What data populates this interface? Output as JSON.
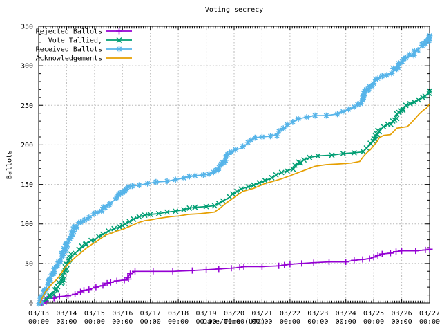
{
  "title": "Voting secrecy",
  "axes": {
    "x_label": "Date/Time (UTC)",
    "y_label": "Ballots",
    "x_ticks": [
      {
        "date": "03/13",
        "time": "00:00"
      },
      {
        "date": "03/14",
        "time": "00:00"
      },
      {
        "date": "03/15",
        "time": "00:00"
      },
      {
        "date": "03/16",
        "time": "00:00"
      },
      {
        "date": "03/17",
        "time": "00:00"
      },
      {
        "date": "03/18",
        "time": "00:00"
      },
      {
        "date": "03/19",
        "time": "00:00"
      },
      {
        "date": "03/20",
        "time": "00:00"
      },
      {
        "date": "03/21",
        "time": "00:00"
      },
      {
        "date": "03/22",
        "time": "00:00"
      },
      {
        "date": "03/23",
        "time": "00:00"
      },
      {
        "date": "03/24",
        "time": "00:00"
      },
      {
        "date": "03/25",
        "time": "00:00"
      },
      {
        "date": "03/26",
        "time": "00:00"
      },
      {
        "date": "03/27",
        "time": "00:00"
      }
    ],
    "y_ticks": [
      "0",
      "50",
      "100",
      "150",
      "200",
      "250",
      "300",
      "350"
    ],
    "y_range": [
      0,
      350
    ],
    "x_range_days": [
      0,
      14
    ],
    "grid": "dashed"
  },
  "legend": {
    "position": "top-left",
    "items": [
      {
        "label": "Rejected Ballots",
        "marker": "plus"
      },
      {
        "label": "Vote Tallied,",
        "marker": "cross"
      },
      {
        "label": "Received Ballots",
        "marker": "asterisk"
      },
      {
        "label": "Acknowledgements",
        "marker": "none"
      }
    ]
  },
  "colors": {
    "rejected": "#9400D3",
    "tallied": "#009E73",
    "received": "#56B4E9",
    "acknowledgements": "#E69F00",
    "grid": "#b8b8b8",
    "axis": "#000000",
    "background": "#ffffff"
  },
  "chart_data": {
    "type": "line",
    "title": "Voting secrecy",
    "xlabel": "Date/Time (UTC)",
    "ylabel": "Ballots",
    "x_unit": "days since 03/13 00:00 UTC",
    "x_tick_dates": [
      "03/13",
      "03/14",
      "03/15",
      "03/16",
      "03/17",
      "03/18",
      "03/19",
      "03/20",
      "03/21",
      "03/22",
      "03/23",
      "03/24",
      "03/25",
      "03/26",
      "03/27"
    ],
    "ylim": [
      0,
      350
    ],
    "legend_position": "top-left",
    "series": [
      {
        "name": "Rejected Ballots",
        "color_key": "rejected",
        "marker": "plus",
        "points": [
          [
            0.12,
            0
          ],
          [
            0.22,
            2
          ],
          [
            0.3,
            5
          ],
          [
            0.55,
            6
          ],
          [
            0.75,
            8
          ],
          [
            1.05,
            9
          ],
          [
            1.3,
            11
          ],
          [
            1.5,
            14
          ],
          [
            1.62,
            16
          ],
          [
            1.8,
            17
          ],
          [
            2.05,
            20
          ],
          [
            2.3,
            22
          ],
          [
            2.45,
            25
          ],
          [
            2.58,
            26
          ],
          [
            2.8,
            28
          ],
          [
            3.05,
            29
          ],
          [
            3.18,
            32
          ],
          [
            3.28,
            37
          ],
          [
            3.45,
            40
          ],
          [
            4.1,
            40
          ],
          [
            4.8,
            40
          ],
          [
            5.5,
            41
          ],
          [
            6.0,
            42
          ],
          [
            6.9,
            44
          ],
          [
            7.2,
            45
          ],
          [
            7.35,
            46
          ],
          [
            8.0,
            46
          ],
          [
            8.6,
            47
          ],
          [
            8.8,
            48
          ],
          [
            9.0,
            49
          ],
          [
            9.42,
            50
          ],
          [
            9.85,
            51
          ],
          [
            10.4,
            52
          ],
          [
            11.0,
            52
          ],
          [
            11.3,
            54
          ],
          [
            11.6,
            55
          ],
          [
            11.85,
            56
          ],
          [
            12.0,
            58
          ],
          [
            12.15,
            60
          ],
          [
            12.3,
            62
          ],
          [
            12.6,
            63
          ],
          [
            12.8,
            65
          ],
          [
            13.0,
            66
          ],
          [
            13.5,
            66
          ],
          [
            13.85,
            67
          ],
          [
            14.0,
            68
          ]
        ]
      },
      {
        "name": "Vote Tallied,",
        "color_key": "tallied",
        "marker": "cross",
        "points": [
          [
            0.1,
            0
          ],
          [
            0.3,
            4
          ],
          [
            0.5,
            12
          ],
          [
            0.62,
            17
          ],
          [
            0.72,
            22
          ],
          [
            0.82,
            28
          ],
          [
            0.92,
            38
          ],
          [
            1.0,
            48
          ],
          [
            1.08,
            55
          ],
          [
            1.18,
            60
          ],
          [
            1.3,
            63
          ],
          [
            1.45,
            67
          ],
          [
            1.55,
            70
          ],
          [
            1.65,
            73
          ],
          [
            1.75,
            76
          ],
          [
            1.88,
            79
          ],
          [
            2.0,
            80
          ],
          [
            2.15,
            84
          ],
          [
            2.3,
            87
          ],
          [
            2.5,
            91
          ],
          [
            2.7,
            94
          ],
          [
            2.9,
            96
          ],
          [
            3.0,
            98
          ],
          [
            3.1,
            100
          ],
          [
            3.25,
            103
          ],
          [
            3.4,
            106
          ],
          [
            3.6,
            109
          ],
          [
            3.8,
            111
          ],
          [
            4.0,
            112
          ],
          [
            4.3,
            113
          ],
          [
            4.6,
            115
          ],
          [
            4.9,
            116
          ],
          [
            5.2,
            118
          ],
          [
            5.4,
            120
          ],
          [
            5.6,
            121
          ],
          [
            6.0,
            122
          ],
          [
            6.3,
            123
          ],
          [
            6.45,
            126
          ],
          [
            6.6,
            129
          ],
          [
            6.8,
            133
          ],
          [
            6.95,
            138
          ],
          [
            7.1,
            141
          ],
          [
            7.25,
            144
          ],
          [
            7.5,
            147
          ],
          [
            7.7,
            149
          ],
          [
            7.9,
            152
          ],
          [
            8.1,
            155
          ],
          [
            8.35,
            158
          ],
          [
            8.5,
            162
          ],
          [
            8.7,
            165
          ],
          [
            8.9,
            167
          ],
          [
            9.1,
            170
          ],
          [
            9.3,
            176
          ],
          [
            9.5,
            181
          ],
          [
            9.7,
            184
          ],
          [
            10.0,
            186
          ],
          [
            10.5,
            187
          ],
          [
            10.9,
            189
          ],
          [
            11.3,
            190
          ],
          [
            11.6,
            191
          ],
          [
            11.75,
            196
          ],
          [
            11.9,
            201
          ],
          [
            12.0,
            206
          ],
          [
            12.1,
            212
          ],
          [
            12.2,
            218
          ],
          [
            12.35,
            223
          ],
          [
            12.5,
            226
          ],
          [
            12.65,
            228
          ],
          [
            12.75,
            233
          ],
          [
            12.85,
            238
          ],
          [
            12.95,
            243
          ],
          [
            13.05,
            247
          ],
          [
            13.15,
            250
          ],
          [
            13.3,
            252
          ],
          [
            13.45,
            254
          ],
          [
            13.6,
            257
          ],
          [
            13.75,
            260
          ],
          [
            13.85,
            262
          ],
          [
            13.95,
            265
          ],
          [
            14.0,
            268
          ]
        ]
      },
      {
        "name": "Received Ballots",
        "color_key": "received",
        "marker": "asterisk",
        "points": [
          [
            0.02,
            0
          ],
          [
            0.1,
            6
          ],
          [
            0.2,
            14
          ],
          [
            0.3,
            22
          ],
          [
            0.4,
            30
          ],
          [
            0.5,
            37
          ],
          [
            0.6,
            44
          ],
          [
            0.7,
            50
          ],
          [
            0.8,
            57
          ],
          [
            0.9,
            64
          ],
          [
            1.0,
            73
          ],
          [
            1.1,
            80
          ],
          [
            1.2,
            88
          ],
          [
            1.3,
            94
          ],
          [
            1.4,
            98
          ],
          [
            1.5,
            102
          ],
          [
            1.65,
            105
          ],
          [
            1.8,
            108
          ],
          [
            2.0,
            112
          ],
          [
            2.2,
            117
          ],
          [
            2.4,
            122
          ],
          [
            2.6,
            127
          ],
          [
            2.75,
            131
          ],
          [
            2.9,
            136
          ],
          [
            3.0,
            140
          ],
          [
            3.1,
            144
          ],
          [
            3.2,
            147
          ],
          [
            3.35,
            148
          ],
          [
            3.6,
            149
          ],
          [
            3.9,
            151
          ],
          [
            4.2,
            153
          ],
          [
            4.6,
            154
          ],
          [
            4.9,
            156
          ],
          [
            5.2,
            158
          ],
          [
            5.4,
            160
          ],
          [
            5.6,
            161
          ],
          [
            5.9,
            162
          ],
          [
            6.1,
            163
          ],
          [
            6.3,
            166
          ],
          [
            6.4,
            170
          ],
          [
            6.5,
            175
          ],
          [
            6.6,
            180
          ],
          [
            6.75,
            186
          ],
          [
            6.9,
            191
          ],
          [
            7.05,
            194
          ],
          [
            7.3,
            196
          ],
          [
            7.45,
            201
          ],
          [
            7.6,
            206
          ],
          [
            7.75,
            209
          ],
          [
            8.0,
            210
          ],
          [
            8.3,
            211
          ],
          [
            8.5,
            213
          ],
          [
            8.65,
            217
          ],
          [
            8.8,
            221
          ],
          [
            8.95,
            225
          ],
          [
            9.1,
            229
          ],
          [
            9.3,
            233
          ],
          [
            9.6,
            235
          ],
          [
            9.9,
            237
          ],
          [
            10.3,
            237
          ],
          [
            10.7,
            239
          ],
          [
            10.9,
            242
          ],
          [
            11.1,
            245
          ],
          [
            11.3,
            248
          ],
          [
            11.45,
            251
          ],
          [
            11.55,
            256
          ],
          [
            11.65,
            262
          ],
          [
            11.75,
            269
          ],
          [
            11.85,
            274
          ],
          [
            11.95,
            278
          ],
          [
            12.05,
            281
          ],
          [
            12.15,
            284
          ],
          [
            12.3,
            287
          ],
          [
            12.5,
            288
          ],
          [
            12.6,
            291
          ],
          [
            12.75,
            295
          ],
          [
            12.85,
            299
          ],
          [
            12.95,
            303
          ],
          [
            13.05,
            307
          ],
          [
            13.15,
            310
          ],
          [
            13.3,
            312
          ],
          [
            13.4,
            315
          ],
          [
            13.5,
            318
          ],
          [
            13.6,
            321
          ],
          [
            13.7,
            324
          ],
          [
            13.8,
            328
          ],
          [
            13.9,
            332
          ],
          [
            14.0,
            338
          ]
        ]
      },
      {
        "name": "Acknowledgements",
        "color_key": "acknowledgements",
        "marker": "none",
        "points": [
          [
            0.05,
            0
          ],
          [
            0.15,
            8
          ],
          [
            0.25,
            15
          ],
          [
            0.35,
            19
          ],
          [
            0.5,
            25
          ],
          [
            0.62,
            29
          ],
          [
            0.72,
            33
          ],
          [
            0.85,
            40
          ],
          [
            0.95,
            45
          ],
          [
            1.05,
            49
          ],
          [
            1.2,
            54
          ],
          [
            1.35,
            59
          ],
          [
            1.5,
            63
          ],
          [
            1.7,
            69
          ],
          [
            1.9,
            74
          ],
          [
            2.0,
            76
          ],
          [
            2.2,
            81
          ],
          [
            2.4,
            86
          ],
          [
            2.6,
            88
          ],
          [
            2.8,
            91
          ],
          [
            3.0,
            93
          ],
          [
            3.2,
            96
          ],
          [
            3.4,
            99
          ],
          [
            3.6,
            102
          ],
          [
            3.8,
            104
          ],
          [
            4.0,
            105
          ],
          [
            4.3,
            107
          ],
          [
            4.7,
            109
          ],
          [
            5.0,
            110
          ],
          [
            5.35,
            112
          ],
          [
            5.8,
            113
          ],
          [
            6.3,
            115
          ],
          [
            6.5,
            120
          ],
          [
            6.7,
            126
          ],
          [
            6.9,
            131
          ],
          [
            7.1,
            136
          ],
          [
            7.3,
            141
          ],
          [
            7.5,
            143
          ],
          [
            7.7,
            145
          ],
          [
            7.9,
            148
          ],
          [
            8.1,
            151
          ],
          [
            8.4,
            154
          ],
          [
            8.7,
            157
          ],
          [
            9.0,
            161
          ],
          [
            9.3,
            165
          ],
          [
            9.6,
            169
          ],
          [
            9.9,
            173
          ],
          [
            10.3,
            175
          ],
          [
            10.8,
            176
          ],
          [
            11.2,
            177
          ],
          [
            11.5,
            179
          ],
          [
            11.62,
            185
          ],
          [
            11.75,
            190
          ],
          [
            11.88,
            194
          ],
          [
            12.0,
            199
          ],
          [
            12.1,
            203
          ],
          [
            12.2,
            209
          ],
          [
            12.35,
            212
          ],
          [
            12.6,
            213
          ],
          [
            12.72,
            217
          ],
          [
            12.82,
            221
          ],
          [
            13.0,
            222
          ],
          [
            13.2,
            223
          ],
          [
            13.32,
            227
          ],
          [
            13.45,
            232
          ],
          [
            13.6,
            238
          ],
          [
            13.75,
            243
          ],
          [
            13.9,
            247
          ],
          [
            14.0,
            252
          ]
        ]
      }
    ]
  }
}
